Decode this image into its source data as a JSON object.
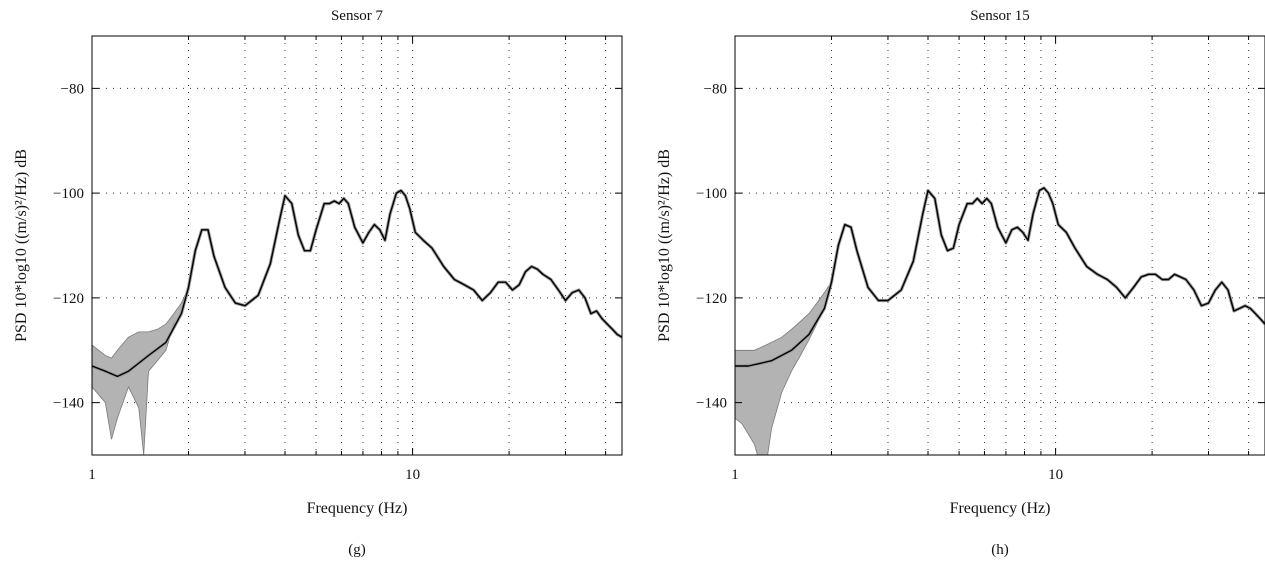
{
  "chart_data": [
    {
      "type": "line",
      "title": "Sensor 7",
      "xlabel": "Frequency (Hz)",
      "ylabel": "PSD 10*log10 ((m/s)²/Hz) dB",
      "subcaption": "(g)",
      "x_scale": "log",
      "xlim": [
        1,
        45
      ],
      "ylim": [
        -150,
        -70
      ],
      "x_ticks": [
        1,
        10
      ],
      "x_tick_labels": [
        "1",
        "10"
      ],
      "y_ticks": [
        -140,
        -120,
        -100,
        -80
      ],
      "y_tick_labels": [
        "−140",
        "−120",
        "−100",
        "−80"
      ],
      "x_grid": [
        1,
        2,
        3,
        4,
        5,
        6,
        7,
        8,
        9,
        10,
        20,
        30,
        40
      ],
      "y_grid": [
        -140,
        -120,
        -100,
        -80
      ],
      "grid": true,
      "series": [
        {
          "role": "psd-estimate",
          "color": "#000000",
          "x": [
            1.0,
            1.1,
            1.2,
            1.3,
            1.5,
            1.7,
            1.9,
            2.0,
            2.1,
            2.2,
            2.3,
            2.4,
            2.6,
            2.8,
            3.0,
            3.3,
            3.6,
            3.85,
            4.0,
            4.2,
            4.4,
            4.6,
            4.8,
            5.0,
            5.3,
            5.5,
            5.7,
            5.9,
            6.1,
            6.3,
            6.6,
            7.0,
            7.3,
            7.6,
            7.9,
            8.2,
            8.5,
            8.9,
            9.2,
            9.5,
            9.8,
            10.2,
            10.8,
            11.5,
            12.5,
            13.5,
            14.5,
            15.5,
            16.5,
            17.5,
            18.5,
            19.5,
            20.5,
            21.5,
            22.5,
            23.5,
            24.5,
            25.5,
            27.0,
            28.5,
            30.0,
            31.5,
            33.0,
            34.5,
            36.0,
            37.5,
            39.0,
            40.5,
            42.0,
            43.5,
            45.0
          ],
          "y": [
            -133,
            -134,
            -135,
            -134,
            -131,
            -128.5,
            -123,
            -118,
            -111,
            -107,
            -107,
            -112,
            -118,
            -121,
            -121.5,
            -119.5,
            -113.5,
            -105,
            -100.5,
            -102,
            -108,
            -111,
            -111,
            -107,
            -102,
            -102,
            -101.5,
            -102,
            -101,
            -102,
            -106.5,
            -109.5,
            -107.5,
            -106,
            -107,
            -109,
            -104,
            -100,
            -99.5,
            -100.5,
            -103,
            -107.5,
            -109,
            -110.5,
            -114,
            -116.5,
            -117.5,
            -118.5,
            -120.5,
            -119,
            -117,
            -117,
            -118.5,
            -117.5,
            -115,
            -114,
            -114.5,
            -115.5,
            -116.5,
            -118.5,
            -120.5,
            -119,
            -118.5,
            -120,
            -123,
            -122.5,
            -124,
            -125,
            -126,
            -127,
            -127.5
          ]
        }
      ],
      "band": {
        "role": "confidence-band",
        "color": "#b3b3b3",
        "x": [
          1.0,
          1.1,
          1.15,
          1.2,
          1.3,
          1.4,
          1.45,
          1.5,
          1.6,
          1.7,
          1.8,
          1.9,
          2.0
        ],
        "upper": [
          -129,
          -131,
          -131.5,
          -130,
          -127.5,
          -126.5,
          -126.5,
          -126.5,
          -126,
          -125,
          -123,
          -121,
          -118
        ],
        "lower": [
          -137,
          -140,
          -147,
          -143,
          -137,
          -141,
          -150,
          -134,
          -132,
          -130,
          -125,
          -123.5,
          -118.5
        ]
      }
    },
    {
      "type": "line",
      "title": "Sensor 15",
      "xlabel": "Frequency (Hz)",
      "ylabel": "PSD 10*log10 ((m/s)²/Hz) dB",
      "subcaption": "(h)",
      "x_scale": "log",
      "xlim": [
        1,
        45
      ],
      "ylim": [
        -150,
        -70
      ],
      "x_ticks": [
        1,
        10
      ],
      "x_tick_labels": [
        "1",
        "10"
      ],
      "y_ticks": [
        -140,
        -120,
        -100,
        -80
      ],
      "y_tick_labels": [
        "−140",
        "−120",
        "−100",
        "−80"
      ],
      "x_grid": [
        1,
        2,
        3,
        4,
        5,
        6,
        7,
        8,
        9,
        10,
        20,
        30,
        40
      ],
      "y_grid": [
        -140,
        -120,
        -100,
        -80
      ],
      "grid": true,
      "series": [
        {
          "role": "psd-estimate",
          "color": "#000000",
          "x": [
            1.0,
            1.1,
            1.2,
            1.3,
            1.5,
            1.7,
            1.9,
            2.0,
            2.1,
            2.2,
            2.3,
            2.4,
            2.6,
            2.8,
            3.0,
            3.3,
            3.6,
            3.85,
            4.0,
            4.2,
            4.4,
            4.6,
            4.8,
            5.0,
            5.3,
            5.5,
            5.7,
            5.9,
            6.1,
            6.3,
            6.6,
            7.0,
            7.3,
            7.6,
            7.9,
            8.2,
            8.5,
            8.9,
            9.2,
            9.5,
            9.8,
            10.2,
            10.8,
            11.5,
            12.5,
            13.5,
            14.5,
            15.5,
            16.5,
            17.5,
            18.5,
            19.5,
            20.5,
            21.5,
            22.5,
            23.5,
            24.5,
            25.5,
            27.0,
            28.5,
            30.0,
            31.5,
            33.0,
            34.5,
            36.0,
            37.5,
            39.0,
            40.5,
            42.0,
            43.5,
            45.0
          ],
          "y": [
            -133,
            -133,
            -132.5,
            -132,
            -130,
            -127,
            -122,
            -117,
            -110,
            -106,
            -106.5,
            -111,
            -118,
            -120.5,
            -120.5,
            -118.5,
            -113,
            -104,
            -99.5,
            -101,
            -108,
            -111,
            -110.5,
            -106,
            -102,
            -102,
            -101,
            -102,
            -101,
            -102,
            -106.5,
            -109.5,
            -107,
            -106.5,
            -107.5,
            -109,
            -104,
            -99.5,
            -99,
            -100,
            -102,
            -106,
            -107.5,
            -110.5,
            -114,
            -115.5,
            -116.5,
            -118,
            -120,
            -118,
            -116,
            -115.5,
            -115.5,
            -116.5,
            -116.5,
            -115.5,
            -116,
            -116.5,
            -118.5,
            -121.5,
            -121,
            -118.5,
            -117,
            -118.5,
            -122.5,
            -122,
            -121.5,
            -122,
            -123,
            -124,
            -125
          ]
        }
      ],
      "band": {
        "role": "confidence-band",
        "color": "#b3b3b3",
        "x": [
          1.0,
          1.05,
          1.1,
          1.15,
          1.2,
          1.25,
          1.3,
          1.4,
          1.5,
          1.6,
          1.7,
          1.8,
          1.9,
          2.0
        ],
        "upper": [
          -130,
          -130,
          -130,
          -130,
          -129.5,
          -129,
          -128.5,
          -127.5,
          -126,
          -124.5,
          -123,
          -121,
          -119,
          -117
        ],
        "lower": [
          -143,
          -144,
          -146,
          -148,
          -152,
          -152,
          -145,
          -138,
          -134,
          -131,
          -128,
          -125,
          -122,
          -117.5
        ]
      }
    }
  ]
}
